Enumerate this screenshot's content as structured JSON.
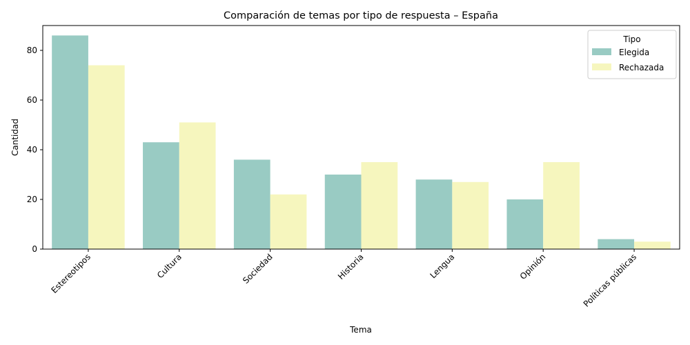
{
  "chart_data": {
    "type": "bar",
    "title": "Comparación de temas por tipo de respuesta – España",
    "xlabel": "Tema",
    "ylabel": "Cantidad",
    "categories": [
      "Estereotipos",
      "Cultura",
      "Sociedad",
      "Historia",
      "Lengua",
      "Opinión",
      "Políticas públicas"
    ],
    "series": [
      {
        "name": "Elegida",
        "color": "#99cbc3",
        "values": [
          86,
          43,
          36,
          30,
          28,
          20,
          4
        ]
      },
      {
        "name": "Rechazada",
        "color": "#f6f6be",
        "values": [
          74,
          51,
          22,
          35,
          27,
          35,
          3
        ]
      }
    ],
    "ylim": [
      0,
      90
    ],
    "yticks": [
      0,
      20,
      40,
      60,
      80
    ],
    "grid": false,
    "legend": {
      "title": "Tipo",
      "position": "top-right"
    }
  }
}
